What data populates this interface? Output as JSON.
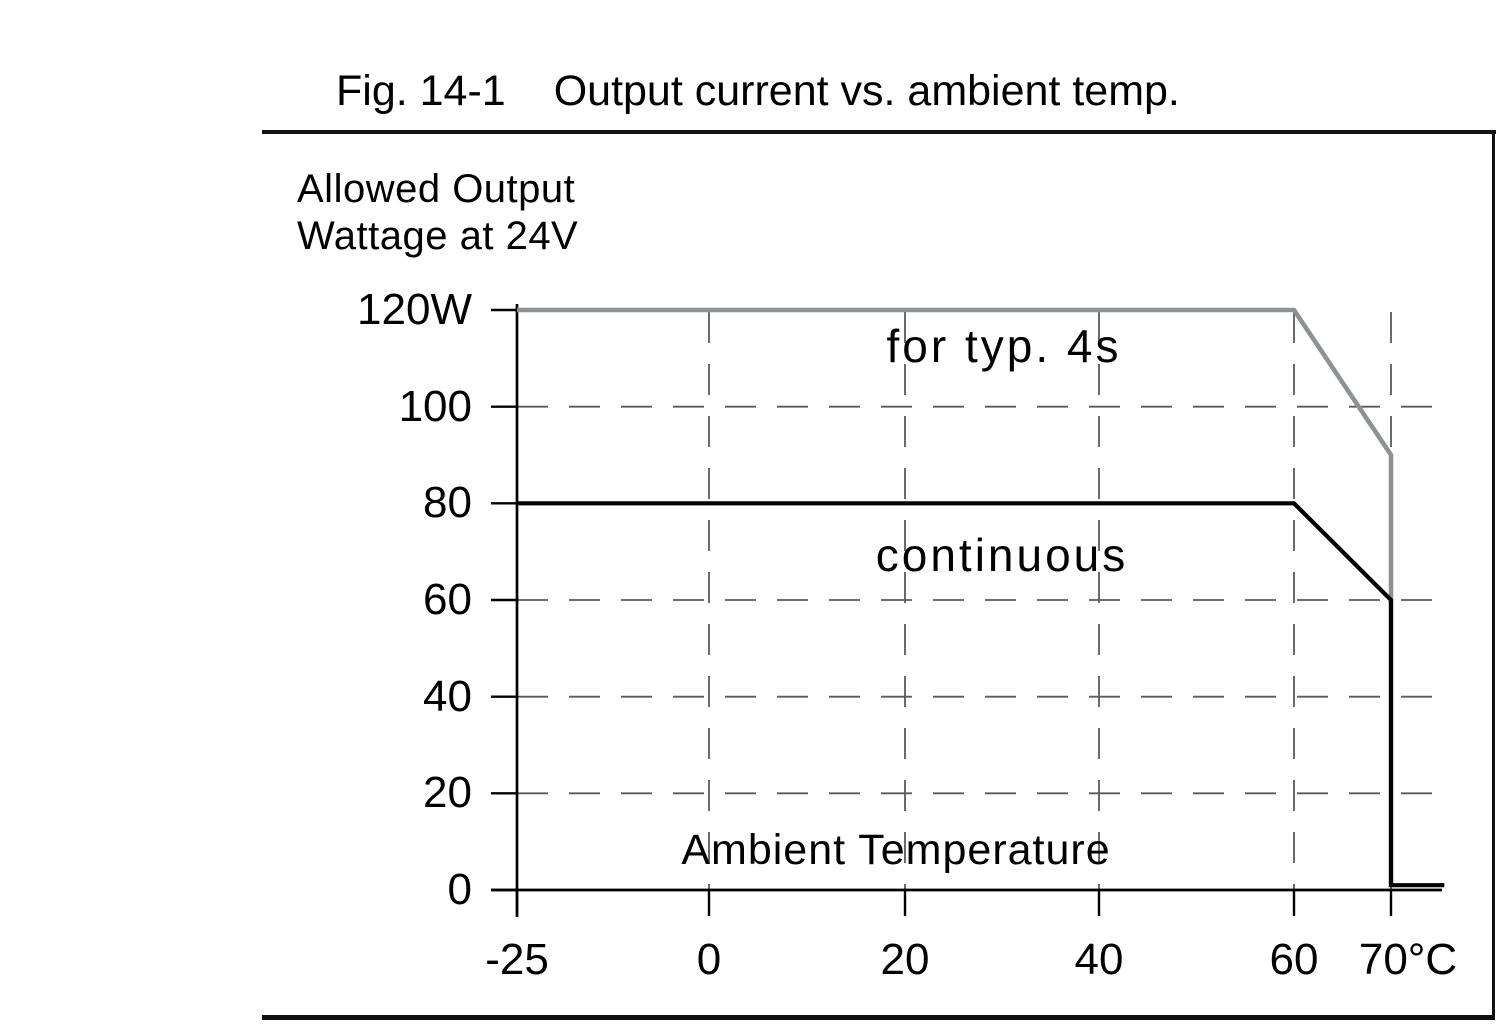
{
  "figure": {
    "number": "Fig. 14-1",
    "caption": "Output current vs. ambient temp."
  },
  "chart_data": {
    "type": "line",
    "title": "Fig. 14-1 Output current vs. ambient temp.",
    "xlabel": "Ambient Temperature",
    "ylabel": "Allowed Output Wattage at 24V",
    "ylabel_lines": [
      "Allowed Output",
      "Wattage at 24V"
    ],
    "x_unit": "°C",
    "y_unit": "W",
    "xlim": [
      -25,
      75
    ],
    "ylim": [
      0,
      120
    ],
    "x_ticks": [
      {
        "v": -25,
        "label": "-25"
      },
      {
        "v": 0,
        "label": "0"
      },
      {
        "v": 20,
        "label": "20"
      },
      {
        "v": 40,
        "label": "40"
      },
      {
        "v": 60,
        "label": "60"
      },
      {
        "v": 70,
        "label": "70°C"
      }
    ],
    "y_ticks": [
      {
        "v": 0,
        "label": "0"
      },
      {
        "v": 20,
        "label": "20"
      },
      {
        "v": 40,
        "label": "40"
      },
      {
        "v": 60,
        "label": "60"
      },
      {
        "v": 80,
        "label": "80"
      },
      {
        "v": 100,
        "label": "100"
      },
      {
        "v": 120,
        "label": "120W"
      }
    ],
    "grid": {
      "style": "dashed",
      "x_values": [
        0,
        20,
        40,
        60,
        70
      ],
      "y_values": [
        20,
        40,
        60,
        100
      ]
    },
    "legend_position": "inline-annotations",
    "series": [
      {
        "name": "for typ. 4s",
        "color": "#8e9391",
        "points": [
          [
            -25,
            120
          ],
          [
            60,
            120
          ],
          [
            70,
            90
          ],
          [
            70,
            0.8
          ]
        ]
      },
      {
        "name": "continuous",
        "color": "#000000",
        "points": [
          [
            -25,
            80
          ],
          [
            60,
            80
          ],
          [
            70,
            60
          ],
          [
            70,
            1
          ],
          [
            75.5,
            1
          ]
        ]
      }
    ]
  }
}
